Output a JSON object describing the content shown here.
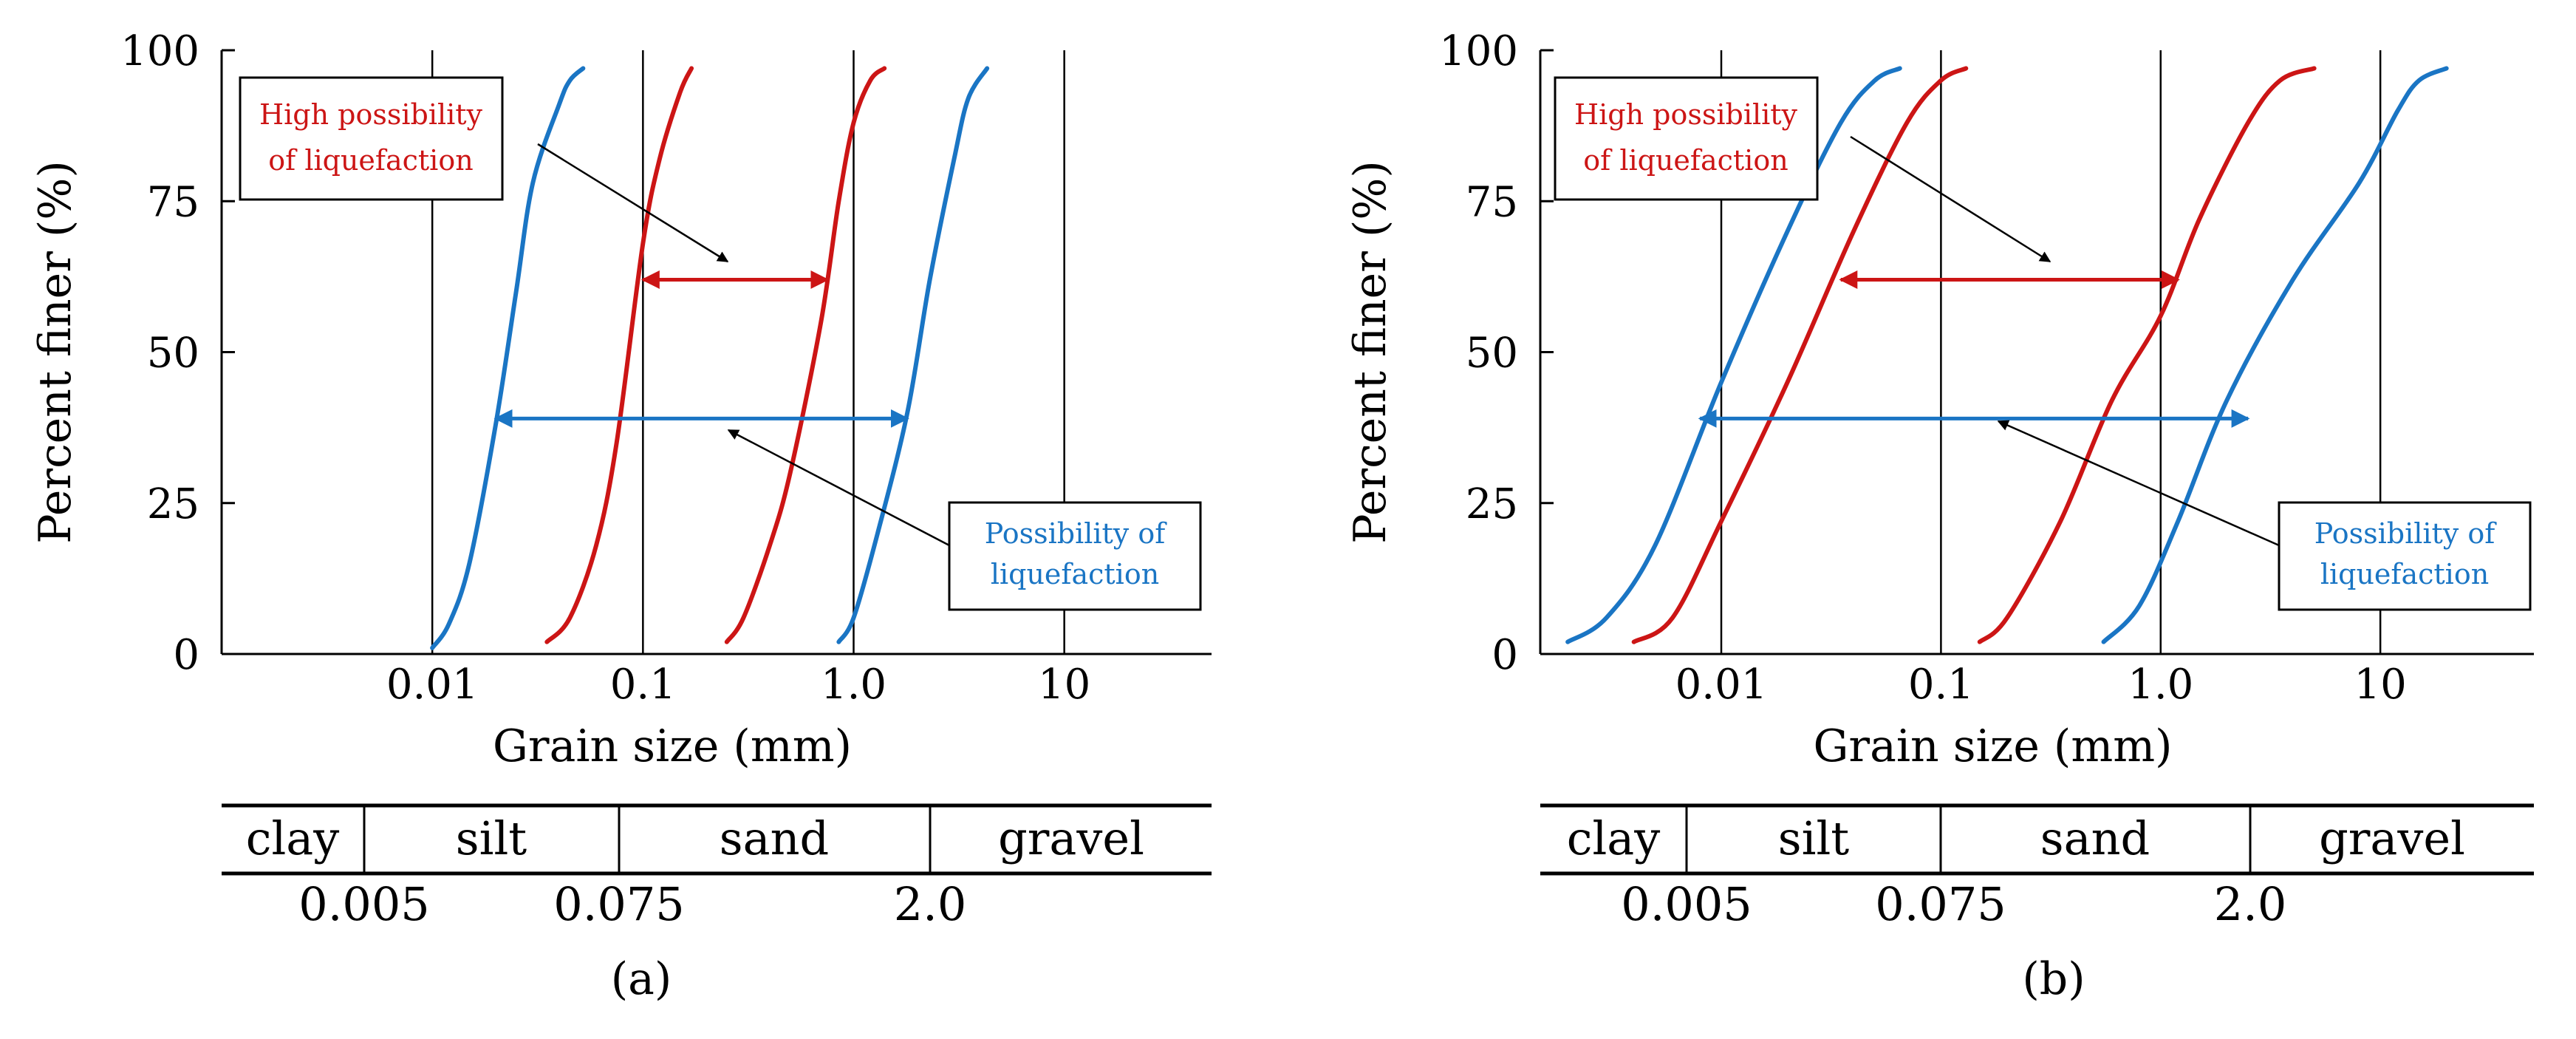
{
  "chart_data": [
    {
      "panel": "(a)",
      "type": "line",
      "x_scale": "log",
      "xlabel": "Grain size (mm)",
      "ylabel": "Percent finer (%)",
      "xlim": [
        0.001,
        50
      ],
      "ylim": [
        0,
        100
      ],
      "xticks": [
        0.01,
        0.1,
        1,
        10
      ],
      "xtick_labels": [
        "0.01",
        "0.1",
        "1.0",
        "10"
      ],
      "yticks": [
        0,
        25,
        50,
        75,
        100
      ],
      "ytick_labels": [
        "0",
        "25",
        "50",
        "75",
        "100"
      ],
      "grid": "vertical lines at 0.01, 0.1, 1.0, 10",
      "series": [
        {
          "name": "Possibility of liquefaction – fine bound",
          "color": "#1a75c4",
          "points": [
            [
              0.01,
              1
            ],
            [
              0.012,
              5
            ],
            [
              0.015,
              15
            ],
            [
              0.02,
              38
            ],
            [
              0.025,
              60
            ],
            [
              0.03,
              78
            ],
            [
              0.04,
              91
            ],
            [
              0.045,
              95
            ],
            [
              0.052,
              97
            ]
          ]
        },
        {
          "name": "High possibility of liquefaction – fine bound",
          "color": "#cc1515",
          "points": [
            [
              0.035,
              2
            ],
            [
              0.045,
              6
            ],
            [
              0.06,
              18
            ],
            [
              0.075,
              35
            ],
            [
              0.1,
              68
            ],
            [
              0.12,
              82
            ],
            [
              0.15,
              93
            ],
            [
              0.17,
              97
            ]
          ]
        },
        {
          "name": "High possibility of liquefaction – coarse bound",
          "color": "#cc1515",
          "points": [
            [
              0.25,
              2
            ],
            [
              0.3,
              6
            ],
            [
              0.4,
              18
            ],
            [
              0.5,
              30
            ],
            [
              0.7,
              55
            ],
            [
              0.85,
              75
            ],
            [
              1.0,
              88
            ],
            [
              1.2,
              95
            ],
            [
              1.4,
              97
            ]
          ]
        },
        {
          "name": "Possibility of liquefaction – coarse bound",
          "color": "#1a75c4",
          "points": [
            [
              0.85,
              2
            ],
            [
              1.0,
              6
            ],
            [
              1.3,
              20
            ],
            [
              1.8,
              40
            ],
            [
              2.3,
              62
            ],
            [
              3.0,
              82
            ],
            [
              3.5,
              92
            ],
            [
              4.3,
              97
            ]
          ]
        }
      ],
      "ranges": [
        {
          "label": "High possibility of liquefaction",
          "color": "#cc1515",
          "y": 62,
          "x_from": 0.1,
          "x_to": 0.75
        },
        {
          "label": "Possibility of liquefaction",
          "color": "#1a75c4",
          "y": 39,
          "x_from": 0.02,
          "x_to": 1.8
        }
      ],
      "annotations": [
        {
          "lines": [
            "High possibility",
            "of liquefaction"
          ],
          "color": "#cc1515",
          "points_to": "red range arrow"
        },
        {
          "lines": [
            "Possibility of",
            "liquefaction"
          ],
          "color": "#1a75c4",
          "points_to": "blue range arrow"
        }
      ],
      "soil_classes": [
        "clay",
        "silt",
        "sand",
        "gravel"
      ],
      "soil_boundaries": [
        "0.005",
        "0.075",
        "2.0"
      ],
      "caption": "(a)"
    },
    {
      "panel": "(b)",
      "type": "line",
      "x_scale": "log",
      "xlabel": "Grain size (mm)",
      "ylabel": "Percent finer (%)",
      "xlim": [
        0.0015,
        50
      ],
      "ylim": [
        0,
        100
      ],
      "xticks": [
        0.01,
        0.1,
        1,
        10
      ],
      "xtick_labels": [
        "0.01",
        "0.1",
        "1.0",
        "10"
      ],
      "yticks": [
        0,
        25,
        50,
        75,
        100
      ],
      "ytick_labels": [
        "0",
        "25",
        "50",
        "75",
        "100"
      ],
      "grid": "vertical lines at 0.01, 0.1, 1.0, 10",
      "series": [
        {
          "name": "Possibility of liquefaction – fine bound",
          "color": "#1a75c4",
          "points": [
            [
              0.002,
              2
            ],
            [
              0.003,
              6
            ],
            [
              0.005,
              18
            ],
            [
              0.01,
              45
            ],
            [
              0.02,
              70
            ],
            [
              0.035,
              88
            ],
            [
              0.05,
              95
            ],
            [
              0.065,
              97
            ]
          ]
        },
        {
          "name": "High possibility of liquefaction – fine bound",
          "color": "#cc1515",
          "points": [
            [
              0.004,
              2
            ],
            [
              0.006,
              6
            ],
            [
              0.01,
              22
            ],
            [
              0.02,
              45
            ],
            [
              0.04,
              70
            ],
            [
              0.07,
              88
            ],
            [
              0.1,
              95
            ],
            [
              0.13,
              97
            ]
          ]
        },
        {
          "name": "High possibility of liquefaction – coarse bound",
          "color": "#cc1515",
          "points": [
            [
              0.15,
              2
            ],
            [
              0.2,
              6
            ],
            [
              0.35,
              22
            ],
            [
              0.6,
              42
            ],
            [
              1.0,
              56
            ],
            [
              1.5,
              72
            ],
            [
              2.5,
              88
            ],
            [
              3.5,
              95
            ],
            [
              5,
              97
            ]
          ]
        },
        {
          "name": "Possibility of liquefaction – coarse bound",
          "color": "#1a75c4",
          "points": [
            [
              0.55,
              2
            ],
            [
              0.8,
              8
            ],
            [
              1.2,
              22
            ],
            [
              2.0,
              42
            ],
            [
              4,
              62
            ],
            [
              8,
              78
            ],
            [
              12,
              90
            ],
            [
              15,
              95
            ],
            [
              20,
              97
            ]
          ]
        }
      ],
      "ranges": [
        {
          "label": "High possibility of liquefaction",
          "color": "#cc1515",
          "y": 62,
          "x_from": 0.035,
          "x_to": 1.2
        },
        {
          "label": "Possibility of liquefaction",
          "color": "#1a75c4",
          "y": 39,
          "x_from": 0.008,
          "x_to": 2.5
        }
      ],
      "annotations": [
        {
          "lines": [
            "High possibility",
            "of liquefaction"
          ],
          "color": "#cc1515",
          "points_to": "red range arrow"
        },
        {
          "lines": [
            "Possibility of",
            "liquefaction"
          ],
          "color": "#1a75c4",
          "points_to": "blue range arrow"
        }
      ],
      "soil_classes": [
        "clay",
        "silt",
        "sand",
        "gravel"
      ],
      "soil_boundaries": [
        "0.005",
        "0.075",
        "2.0"
      ],
      "caption": "(b)"
    }
  ]
}
